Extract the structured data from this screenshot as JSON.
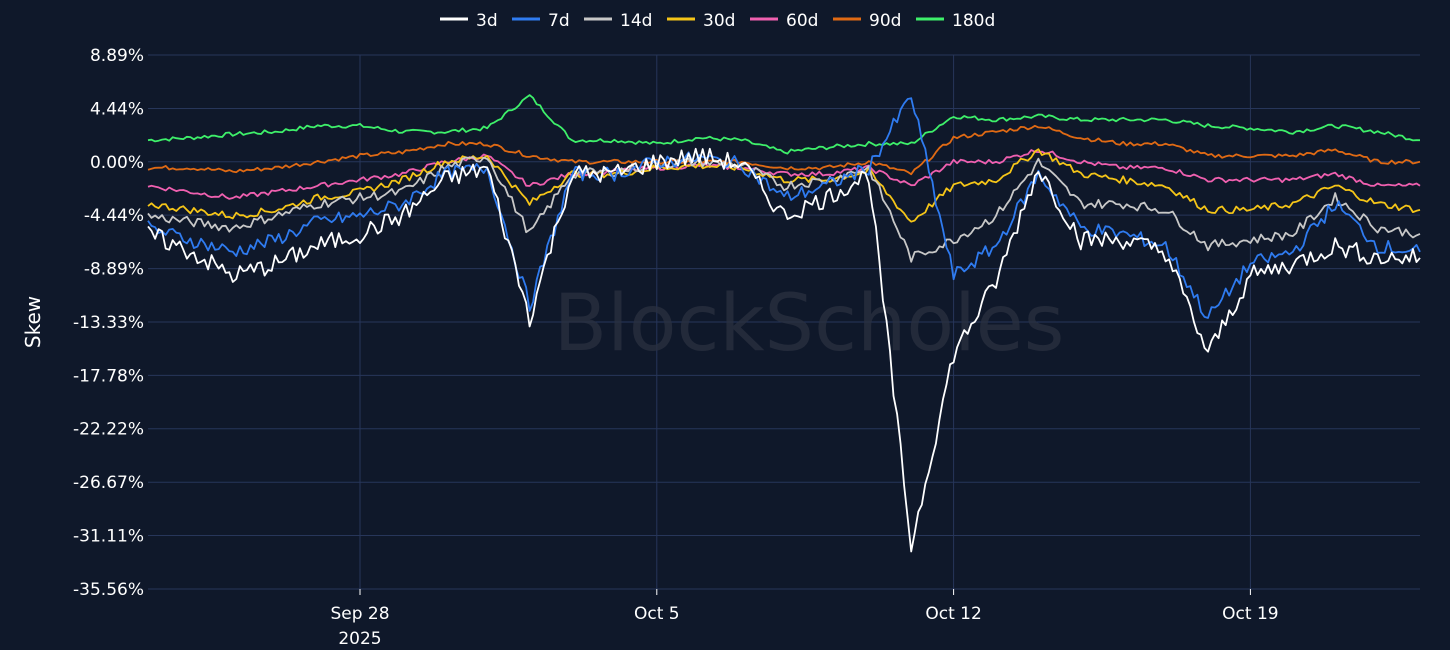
{
  "chart_data": {
    "type": "line",
    "ylabel": "Skew",
    "watermark": "BlockScholes",
    "ylim": [
      -35.56,
      8.89
    ],
    "yticks": [
      "8.89%",
      "4.44%",
      "0.00%",
      "-4.44%",
      "-8.89%",
      "-13.33%",
      "-17.78%",
      "-22.22%",
      "-26.67%",
      "-31.11%",
      "-35.56%"
    ],
    "ytick_values": [
      8.89,
      4.44,
      0,
      -4.44,
      -8.89,
      -13.33,
      -17.78,
      -22.22,
      -26.67,
      -31.11,
      -35.56
    ],
    "xlim": [
      "2025-09-23",
      "2025-10-23"
    ],
    "xticks": [
      {
        "date": "2025-09-28",
        "label": "Sep 28",
        "sublabel": "2025"
      },
      {
        "date": "2025-10-05",
        "label": "Oct 5",
        "sublabel": ""
      },
      {
        "date": "2025-10-12",
        "label": "Oct 12",
        "sublabel": ""
      },
      {
        "date": "2025-10-19",
        "label": "Oct 19",
        "sublabel": ""
      }
    ],
    "grid": true,
    "legend_position": "top-center",
    "series": [
      {
        "name": "3d",
        "color": "#ffffff",
        "x": [
          "2025-09-23",
          "2025-09-24",
          "2025-09-25",
          "2025-09-26",
          "2025-09-27",
          "2025-09-28",
          "2025-09-29",
          "2025-09-30",
          "2025-10-01",
          "2025-10-02",
          "2025-10-03",
          "2025-10-04",
          "2025-10-05",
          "2025-10-06",
          "2025-10-07",
          "2025-10-08",
          "2025-10-09",
          "2025-10-10",
          "2025-10-11",
          "2025-10-12",
          "2025-10-13",
          "2025-10-14",
          "2025-10-15",
          "2025-10-16",
          "2025-10-17",
          "2025-10-18",
          "2025-10-19",
          "2025-10-20",
          "2025-10-21",
          "2025-10-22",
          "2025-10-23"
        ],
        "values": [
          -6.0,
          -7.5,
          -9.5,
          -8.5,
          -7.0,
          -6.0,
          -4.5,
          -1.5,
          -0.5,
          -13.0,
          -1.0,
          -1.0,
          0.0,
          0.5,
          -0.2,
          -4.5,
          -3.0,
          -1.0,
          -32.0,
          -16.0,
          -10.0,
          -0.5,
          -6.5,
          -6.5,
          -7.5,
          -16.0,
          -9.5,
          -8.5,
          -7.0,
          -8.0,
          -8.0
        ]
      },
      {
        "name": "7d",
        "color": "#2f7bf0",
        "x": [
          "2025-09-23",
          "2025-09-24",
          "2025-09-25",
          "2025-09-26",
          "2025-09-27",
          "2025-09-28",
          "2025-09-29",
          "2025-09-30",
          "2025-10-01",
          "2025-10-02",
          "2025-10-03",
          "2025-10-04",
          "2025-10-05",
          "2025-10-06",
          "2025-10-07",
          "2025-10-08",
          "2025-10-09",
          "2025-10-10",
          "2025-10-11",
          "2025-10-12",
          "2025-10-13",
          "2025-10-14",
          "2025-10-15",
          "2025-10-16",
          "2025-10-17",
          "2025-10-18",
          "2025-10-19",
          "2025-10-20",
          "2025-10-21",
          "2025-10-22",
          "2025-10-23"
        ],
        "values": [
          -5.5,
          -6.5,
          -7.5,
          -6.5,
          -5.0,
          -4.5,
          -3.5,
          -1.0,
          -0.5,
          -12.0,
          -1.0,
          -1.0,
          0.0,
          0.3,
          -0.2,
          -3.0,
          -2.0,
          -0.5,
          5.5,
          -9.5,
          -7.0,
          -1.0,
          -5.5,
          -6.0,
          -7.0,
          -13.0,
          -8.5,
          -7.5,
          -3.5,
          -7.0,
          -7.5
        ]
      },
      {
        "name": "14d",
        "color": "#c8c8c8",
        "x": [
          "2025-09-23",
          "2025-09-24",
          "2025-09-25",
          "2025-09-26",
          "2025-09-27",
          "2025-09-28",
          "2025-09-29",
          "2025-09-30",
          "2025-10-01",
          "2025-10-02",
          "2025-10-03",
          "2025-10-04",
          "2025-10-05",
          "2025-10-06",
          "2025-10-07",
          "2025-10-08",
          "2025-10-09",
          "2025-10-10",
          "2025-10-11",
          "2025-10-12",
          "2025-10-13",
          "2025-10-14",
          "2025-10-15",
          "2025-10-16",
          "2025-10-17",
          "2025-10-18",
          "2025-10-19",
          "2025-10-20",
          "2025-10-21",
          "2025-10-22",
          "2025-10-23"
        ],
        "values": [
          -4.5,
          -5.0,
          -5.5,
          -4.5,
          -3.5,
          -3.0,
          -2.5,
          -0.5,
          0.5,
          -6.0,
          -1.0,
          -0.8,
          -0.2,
          0.0,
          -0.3,
          -2.0,
          -1.5,
          -0.5,
          -8.0,
          -6.5,
          -4.5,
          0.0,
          -3.5,
          -3.5,
          -4.0,
          -7.0,
          -6.5,
          -6.0,
          -3.0,
          -5.5,
          -6.0
        ]
      },
      {
        "name": "30d",
        "color": "#f5c518",
        "x": [
          "2025-09-23",
          "2025-09-24",
          "2025-09-25",
          "2025-09-26",
          "2025-09-27",
          "2025-09-28",
          "2025-09-29",
          "2025-09-30",
          "2025-10-01",
          "2025-10-02",
          "2025-10-03",
          "2025-10-04",
          "2025-10-05",
          "2025-10-06",
          "2025-10-07",
          "2025-10-08",
          "2025-10-09",
          "2025-10-10",
          "2025-10-11",
          "2025-10-12",
          "2025-10-13",
          "2025-10-14",
          "2025-10-15",
          "2025-10-16",
          "2025-10-17",
          "2025-10-18",
          "2025-10-19",
          "2025-10-20",
          "2025-10-21",
          "2025-10-22",
          "2025-10-23"
        ],
        "values": [
          -3.5,
          -4.0,
          -4.5,
          -4.0,
          -3.0,
          -2.5,
          -1.5,
          0.0,
          0.5,
          -3.5,
          -1.0,
          -1.0,
          -0.5,
          -0.3,
          -0.5,
          -1.5,
          -1.5,
          -0.8,
          -5.0,
          -2.0,
          -1.5,
          1.0,
          -1.0,
          -1.5,
          -2.0,
          -4.0,
          -4.0,
          -3.5,
          -2.0,
          -3.5,
          -4.0
        ]
      },
      {
        "name": "60d",
        "color": "#f060b0",
        "x": [
          "2025-09-23",
          "2025-09-24",
          "2025-09-25",
          "2025-09-26",
          "2025-09-27",
          "2025-09-28",
          "2025-09-29",
          "2025-09-30",
          "2025-10-01",
          "2025-10-02",
          "2025-10-03",
          "2025-10-04",
          "2025-10-05",
          "2025-10-06",
          "2025-10-07",
          "2025-10-08",
          "2025-10-09",
          "2025-10-10",
          "2025-10-11",
          "2025-10-12",
          "2025-10-13",
          "2025-10-14",
          "2025-10-15",
          "2025-10-16",
          "2025-10-17",
          "2025-10-18",
          "2025-10-19",
          "2025-10-20",
          "2025-10-21",
          "2025-10-22",
          "2025-10-23"
        ],
        "values": [
          -2.0,
          -2.5,
          -3.0,
          -2.5,
          -2.0,
          -1.5,
          -1.0,
          0.0,
          0.5,
          -2.0,
          -1.0,
          -0.8,
          -0.5,
          -0.3,
          -0.5,
          -1.0,
          -1.0,
          -0.5,
          -2.0,
          0.0,
          0.0,
          1.0,
          0.0,
          -0.5,
          -0.5,
          -1.5,
          -1.5,
          -1.5,
          -1.0,
          -2.0,
          -2.0
        ]
      },
      {
        "name": "90d",
        "color": "#e06a14",
        "x": [
          "2025-09-23",
          "2025-09-24",
          "2025-09-25",
          "2025-09-26",
          "2025-09-27",
          "2025-09-28",
          "2025-09-29",
          "2025-09-30",
          "2025-10-01",
          "2025-10-02",
          "2025-10-03",
          "2025-10-04",
          "2025-10-05",
          "2025-10-06",
          "2025-10-07",
          "2025-10-08",
          "2025-10-09",
          "2025-10-10",
          "2025-10-11",
          "2025-10-12",
          "2025-10-13",
          "2025-10-14",
          "2025-10-15",
          "2025-10-16",
          "2025-10-17",
          "2025-10-18",
          "2025-10-19",
          "2025-10-20",
          "2025-10-21",
          "2025-10-22",
          "2025-10-23"
        ],
        "values": [
          -0.5,
          -0.5,
          -0.8,
          -0.5,
          0.0,
          0.5,
          0.8,
          1.5,
          1.5,
          0.5,
          0.0,
          0.0,
          0.0,
          0.0,
          0.0,
          -0.5,
          -0.5,
          0.0,
          -1.0,
          2.0,
          2.5,
          3.0,
          2.0,
          1.5,
          1.5,
          0.5,
          0.5,
          0.5,
          1.0,
          0.0,
          0.0
        ]
      },
      {
        "name": "180d",
        "color": "#3ef06a",
        "x": [
          "2025-09-23",
          "2025-09-24",
          "2025-09-25",
          "2025-09-26",
          "2025-09-27",
          "2025-09-28",
          "2025-09-29",
          "2025-09-30",
          "2025-10-01",
          "2025-10-02",
          "2025-10-03",
          "2025-10-04",
          "2025-10-05",
          "2025-10-06",
          "2025-10-07",
          "2025-10-08",
          "2025-10-09",
          "2025-10-10",
          "2025-10-11",
          "2025-10-12",
          "2025-10-13",
          "2025-10-14",
          "2025-10-15",
          "2025-10-16",
          "2025-10-17",
          "2025-10-18",
          "2025-10-19",
          "2025-10-20",
          "2025-10-21",
          "2025-10-22",
          "2025-10-23"
        ],
        "values": [
          1.8,
          2.0,
          2.3,
          2.5,
          3.0,
          3.0,
          2.5,
          2.5,
          2.8,
          5.5,
          1.8,
          1.8,
          1.5,
          2.0,
          1.8,
          0.8,
          1.2,
          1.5,
          1.5,
          3.8,
          3.5,
          3.8,
          3.5,
          3.5,
          3.5,
          3.0,
          2.8,
          2.5,
          3.0,
          2.5,
          1.8
        ]
      }
    ]
  }
}
